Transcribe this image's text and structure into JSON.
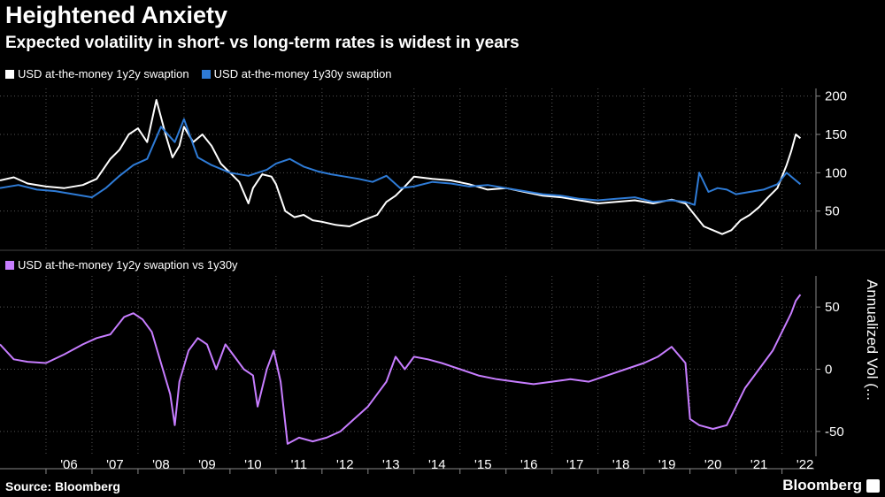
{
  "header": {
    "title": "Heightened Anxiety",
    "subtitle": "Expected volatility in short- vs long-term rates is widest in years"
  },
  "footer": {
    "source": "Source: Bloomberg",
    "brand": "Bloomberg"
  },
  "colors": {
    "white_series": "#ffffff",
    "blue_series": "#2e7bd6",
    "purple_series": "#c77dff",
    "gridline": "#555555"
  },
  "chart_data": [
    {
      "type": "line",
      "legend_position": "top-left",
      "grid": true,
      "ylim": [
        0,
        210
      ],
      "yticks": [
        50,
        100,
        150,
        200
      ],
      "xlim": [
        2005.0,
        2022.7
      ],
      "series": [
        {
          "name": "USD at-the-money 1y2y swaption",
          "color": "#ffffff",
          "x": [
            2005.0,
            2005.3,
            2005.6,
            2006.0,
            2006.4,
            2006.8,
            2007.1,
            2007.4,
            2007.6,
            2007.8,
            2008.0,
            2008.2,
            2008.4,
            2008.6,
            2008.75,
            2008.9,
            2009.0,
            2009.2,
            2009.4,
            2009.6,
            2009.8,
            2010.0,
            2010.2,
            2010.4,
            2010.5,
            2010.7,
            2010.9,
            2011.0,
            2011.2,
            2011.4,
            2011.6,
            2011.8,
            2012.0,
            2012.3,
            2012.6,
            2012.9,
            2013.2,
            2013.4,
            2013.6,
            2013.8,
            2014.0,
            2014.4,
            2014.8,
            2015.2,
            2015.6,
            2016.0,
            2016.4,
            2016.8,
            2017.2,
            2017.6,
            2018.0,
            2018.4,
            2018.8,
            2019.2,
            2019.6,
            2019.9,
            2020.1,
            2020.3,
            2020.5,
            2020.7,
            2020.9,
            2021.1,
            2021.3,
            2021.5,
            2021.7,
            2021.9,
            2022.0,
            2022.1,
            2022.2,
            2022.3,
            2022.4
          ],
          "values": [
            90,
            94,
            86,
            82,
            80,
            84,
            92,
            118,
            130,
            150,
            158,
            140,
            195,
            150,
            120,
            135,
            160,
            140,
            150,
            135,
            112,
            100,
            88,
            60,
            80,
            98,
            95,
            85,
            50,
            42,
            45,
            38,
            36,
            32,
            30,
            38,
            45,
            62,
            70,
            82,
            95,
            92,
            90,
            85,
            78,
            80,
            75,
            70,
            68,
            64,
            60,
            62,
            64,
            60,
            65,
            60,
            45,
            30,
            25,
            20,
            25,
            38,
            45,
            55,
            68,
            80,
            95,
            110,
            128,
            150,
            145
          ]
        },
        {
          "name": "USD at-the-money 1y30y swaption",
          "color": "#2e7bd6",
          "x": [
            2005.0,
            2005.4,
            2005.8,
            2006.2,
            2006.6,
            2007.0,
            2007.3,
            2007.6,
            2007.9,
            2008.2,
            2008.5,
            2008.8,
            2009.0,
            2009.3,
            2009.6,
            2010.0,
            2010.4,
            2010.8,
            2011.0,
            2011.3,
            2011.6,
            2011.9,
            2012.2,
            2012.5,
            2012.8,
            2013.1,
            2013.4,
            2013.7,
            2014.0,
            2014.4,
            2014.8,
            2015.2,
            2015.6,
            2016.0,
            2016.4,
            2016.8,
            2017.2,
            2017.6,
            2018.0,
            2018.4,
            2018.8,
            2019.2,
            2019.6,
            2019.9,
            2020.1,
            2020.2,
            2020.4,
            2020.6,
            2020.8,
            2021.0,
            2021.3,
            2021.6,
            2021.9,
            2022.1,
            2022.3,
            2022.4
          ],
          "values": [
            80,
            84,
            78,
            76,
            72,
            68,
            80,
            96,
            110,
            118,
            160,
            140,
            170,
            120,
            110,
            100,
            96,
            104,
            112,
            118,
            108,
            102,
            98,
            95,
            92,
            88,
            96,
            80,
            82,
            88,
            86,
            82,
            84,
            80,
            76,
            72,
            70,
            66,
            64,
            66,
            68,
            62,
            64,
            62,
            58,
            100,
            75,
            80,
            78,
            72,
            75,
            78,
            85,
            100,
            90,
            85
          ]
        }
      ]
    },
    {
      "type": "line",
      "legend_position": "top-left",
      "grid": true,
      "ylabel": "Annualized Vol (...",
      "ylim": [
        -70,
        75
      ],
      "yticks": [
        -50,
        0,
        50
      ],
      "xlim": [
        2005.0,
        2022.7
      ],
      "xticks": [
        "'06",
        "'07",
        "'08",
        "'09",
        "'10",
        "'11",
        "'12",
        "'13",
        "'14",
        "'15",
        "'16",
        "'17",
        "'18",
        "'19",
        "'20",
        "'21",
        "'22"
      ],
      "xtick_years": [
        2006,
        2007,
        2008,
        2009,
        2010,
        2011,
        2012,
        2013,
        2014,
        2015,
        2016,
        2017,
        2018,
        2019,
        2020,
        2021,
        2022
      ],
      "series": [
        {
          "name": "USD at-the-money 1y2y swaption vs 1y30y",
          "color": "#c77dff",
          "x": [
            2005.0,
            2005.3,
            2005.6,
            2006.0,
            2006.4,
            2006.8,
            2007.1,
            2007.4,
            2007.7,
            2007.9,
            2008.1,
            2008.3,
            2008.5,
            2008.7,
            2008.8,
            2008.9,
            2009.1,
            2009.3,
            2009.5,
            2009.7,
            2009.9,
            2010.1,
            2010.3,
            2010.5,
            2010.6,
            2010.8,
            2010.95,
            2011.1,
            2011.25,
            2011.5,
            2011.8,
            2012.1,
            2012.4,
            2012.7,
            2013.0,
            2013.2,
            2013.4,
            2013.6,
            2013.8,
            2014.0,
            2014.3,
            2014.6,
            2015.0,
            2015.4,
            2015.8,
            2016.2,
            2016.6,
            2017.0,
            2017.4,
            2017.8,
            2018.2,
            2018.6,
            2019.0,
            2019.3,
            2019.6,
            2019.9,
            2020.0,
            2020.2,
            2020.5,
            2020.8,
            2021.0,
            2021.2,
            2021.4,
            2021.6,
            2021.8,
            2022.0,
            2022.2,
            2022.3,
            2022.4
          ],
          "values": [
            20,
            8,
            6,
            5,
            12,
            20,
            25,
            28,
            42,
            45,
            40,
            30,
            5,
            -20,
            -45,
            -10,
            15,
            25,
            20,
            0,
            20,
            10,
            0,
            -5,
            -30,
            0,
            15,
            -10,
            -60,
            -55,
            -58,
            -55,
            -50,
            -40,
            -30,
            -20,
            -10,
            10,
            0,
            10,
            8,
            5,
            0,
            -5,
            -8,
            -10,
            -12,
            -10,
            -8,
            -10,
            -5,
            0,
            5,
            10,
            18,
            5,
            -40,
            -45,
            -48,
            -45,
            -30,
            -15,
            -5,
            5,
            15,
            30,
            45,
            55,
            60
          ]
        }
      ]
    }
  ]
}
